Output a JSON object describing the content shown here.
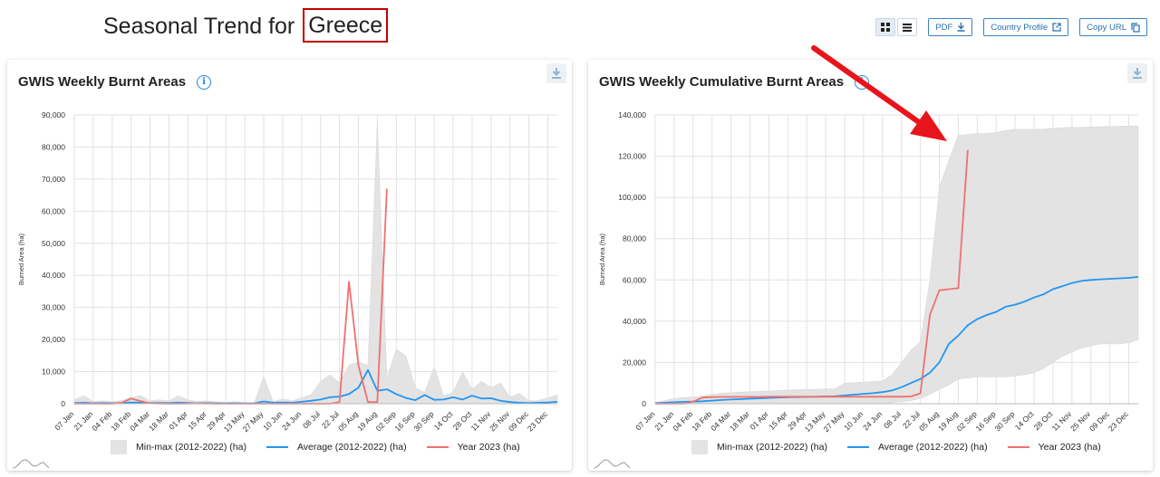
{
  "header": {
    "title_prefix": "Seasonal Trend for",
    "country": "Greece"
  },
  "toolbar": {
    "pdf_label": "PDF",
    "country_profile_label": "Country Profile",
    "copy_url_label": "Copy URL"
  },
  "colors": {
    "average": "#2196f3",
    "year": "#f07070",
    "minmax": "#e3e3e3",
    "accent": "#1e88e5"
  },
  "legend": {
    "minmax": "Min-max (2012-2022) (ha)",
    "average": "Average (2012-2022) (ha)",
    "year": "Year 2023 (ha)"
  },
  "x_ticks": [
    "07 Jan",
    "21 Jan",
    "04 Feb",
    "18 Feb",
    "04 Mar",
    "18 Mar",
    "01 Apr",
    "15 Apr",
    "29 Apr",
    "13 May",
    "27 May",
    "10 Jun",
    "24 Jun",
    "08 Jul",
    "22 Jul",
    "05 Aug",
    "19 Aug",
    "02 Sep",
    "16 Sep",
    "30 Sep",
    "14 Oct",
    "28 Oct",
    "11 Nov",
    "25 Nov",
    "09 Dec",
    "23 Dec"
  ],
  "chart_data": [
    {
      "type": "area",
      "title": "GWIS Weekly Burnt Areas",
      "ylabel": "Burned Area (ha)",
      "ylim": [
        0,
        90000
      ],
      "yticks": [
        "0",
        "10,000",
        "20,000",
        "30,000",
        "40,000",
        "50,000",
        "60,000",
        "70,000",
        "80,000",
        "90,000"
      ],
      "weeks": 52,
      "series": [
        {
          "name": "Min-max (2012-2022) (ha)",
          "kind": "band",
          "min": [
            0,
            0,
            0,
            0,
            0,
            0,
            0,
            0,
            0,
            0,
            0,
            0,
            0,
            0,
            0,
            0,
            0,
            0,
            0,
            0,
            0,
            0,
            0,
            0,
            0,
            0,
            0,
            0,
            0,
            0,
            0,
            0,
            0,
            0,
            0,
            0,
            0,
            0,
            0,
            0,
            0,
            0,
            0,
            0,
            0,
            0,
            0,
            0,
            0,
            0,
            0,
            0
          ],
          "max": [
            1200,
            2500,
            700,
            900,
            600,
            1000,
            2000,
            2500,
            900,
            1200,
            800,
            2500,
            1200,
            700,
            900,
            500,
            400,
            600,
            300,
            200,
            8500,
            700,
            1500,
            900,
            1800,
            2800,
            7000,
            9000,
            6500,
            12000,
            13000,
            12000,
            88000,
            8000,
            17000,
            15000,
            5000,
            3500,
            11500,
            2500,
            3500,
            10000,
            4500,
            7000,
            5000,
            6500,
            2000,
            3200,
            900,
            1000,
            1800,
            2800
          ]
        },
        {
          "name": "Average (2012-2022) (ha)",
          "kind": "line",
          "values": [
            200,
            300,
            150,
            200,
            150,
            250,
            400,
            350,
            200,
            250,
            200,
            350,
            250,
            150,
            200,
            150,
            100,
            150,
            100,
            100,
            700,
            300,
            400,
            300,
            600,
            900,
            1300,
            2000,
            2200,
            3000,
            5000,
            10500,
            4000,
            4500,
            3000,
            1800,
            1100,
            2700,
            1200,
            1300,
            2000,
            1300,
            2500,
            1600,
            1700,
            900,
            500,
            300,
            200,
            300,
            400,
            600
          ]
        },
        {
          "name": "Year 2023 (ha)",
          "kind": "line",
          "values": [
            0,
            0,
            0,
            0,
            0,
            300,
            1600,
            800,
            100,
            50,
            0,
            0,
            50,
            100,
            50,
            0,
            0,
            0,
            0,
            0,
            0,
            0,
            0,
            0,
            0,
            0,
            0,
            0,
            500,
            38000,
            12000,
            500,
            500,
            67000
          ]
        }
      ]
    },
    {
      "type": "area",
      "title": "GWIS Weekly Cumulative Burnt Areas",
      "ylabel": "Burned Area (ha)",
      "ylim": [
        0,
        140000
      ],
      "yticks": [
        "0",
        "20,000",
        "40,000",
        "60,000",
        "80,000",
        "100,000",
        "120,000",
        "140,000"
      ],
      "weeks": 52,
      "series": [
        {
          "name": "Min-max (2012-2022) (ha)",
          "kind": "band",
          "min": [
            0,
            0,
            0,
            0,
            0,
            0,
            0,
            0,
            0,
            0,
            0,
            0,
            0,
            0,
            0,
            0,
            0,
            0,
            0,
            0,
            0,
            0,
            0,
            0,
            0,
            500,
            1000,
            1500,
            2500,
            4500,
            7000,
            9000,
            12000,
            12500,
            13000,
            13000,
            13000,
            13000,
            13500,
            14000,
            15000,
            17000,
            20000,
            23000,
            25000,
            27000,
            28000,
            29000,
            29000,
            29000,
            29500,
            31000
          ],
          "max": [
            600,
            1500,
            2500,
            3000,
            3300,
            3800,
            4500,
            5000,
            5300,
            5600,
            5800,
            6000,
            6200,
            6400,
            6600,
            6800,
            6900,
            7000,
            7100,
            7200,
            10000,
            10200,
            10500,
            10700,
            11000,
            14000,
            20000,
            26000,
            30000,
            60000,
            105000,
            118000,
            130000,
            130500,
            131000,
            131000,
            131500,
            132500,
            133000,
            133000,
            133000,
            133200,
            133500,
            133800,
            134000,
            134000,
            134200,
            134300,
            134400,
            134500,
            134600,
            134700
          ]
        },
        {
          "name": "Average (2012-2022) (ha)",
          "kind": "line",
          "values": [
            200,
            500,
            700,
            900,
            1000,
            1200,
            1500,
            1800,
            2000,
            2200,
            2400,
            2600,
            2800,
            3000,
            3100,
            3200,
            3300,
            3400,
            3500,
            3600,
            4000,
            4400,
            4800,
            5100,
            5600,
            6400,
            8000,
            10000,
            12000,
            15000,
            20000,
            29000,
            33000,
            38000,
            41000,
            43000,
            44500,
            47000,
            48000,
            49500,
            51500,
            53000,
            55500,
            57000,
            58500,
            59500,
            60000,
            60300,
            60500,
            60800,
            61000,
            61500
          ]
        },
        {
          "name": "Year 2023 (ha)",
          "kind": "line",
          "values": [
            0,
            0,
            0,
            0,
            1000,
            3000,
            3200,
            3300,
            3300,
            3300,
            3300,
            3300,
            3400,
            3400,
            3400,
            3400,
            3400,
            3400,
            3400,
            3400,
            3400,
            3400,
            3400,
            3400,
            3400,
            3400,
            3400,
            3500,
            5000,
            43000,
            55000,
            55500,
            56000,
            123000
          ]
        }
      ]
    }
  ]
}
